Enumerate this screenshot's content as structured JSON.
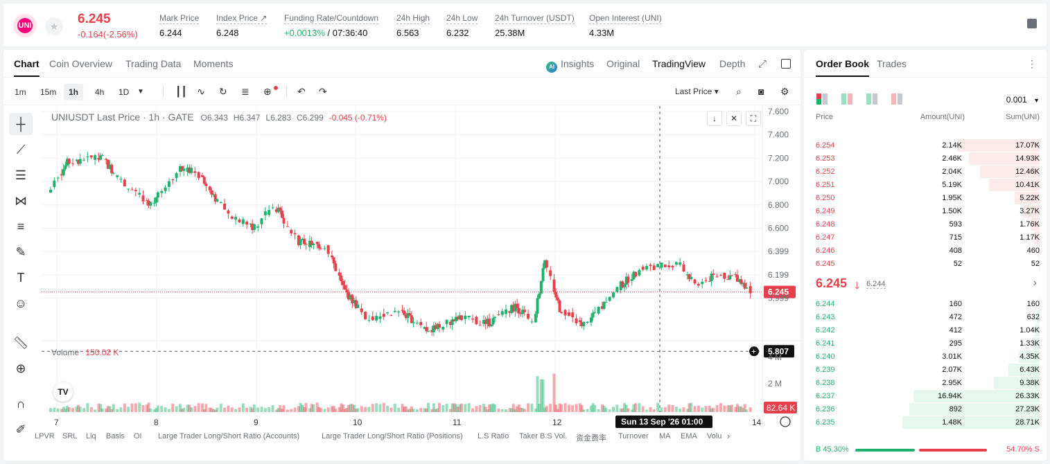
{
  "header": {
    "logo_text": "UNI",
    "price": "6.245",
    "change": "-0.164(-2.56%)",
    "stats": [
      {
        "label": "Mark Price",
        "value": "6.244"
      },
      {
        "label": "Index Price ↗",
        "value": "6.248"
      },
      {
        "label": "Funding Rate/Countdown",
        "value_green": "+0.0013%",
        "value": "/ 07:36:40"
      },
      {
        "label": "24h High",
        "value": "6.563"
      },
      {
        "label": "24h Low",
        "value": "6.232"
      },
      {
        "label": "24h Turnover (USDT)",
        "value": "25.38M"
      },
      {
        "label": "Open Interest (UNI)",
        "value": "4.33M"
      }
    ]
  },
  "chart_tabs": [
    "Chart",
    "Coin Overview",
    "Trading Data",
    "Moments"
  ],
  "view_tabs": {
    "insights": "Insights",
    "insights_badge": "AI",
    "original": "Original",
    "tradingview": "TradingView",
    "depth": "Depth"
  },
  "timeframes": [
    "1m",
    "15m",
    "1h",
    "4h",
    "1D"
  ],
  "price_type": "Last Price ▾",
  "chart_legend": {
    "symbol": "UNIUSDT Last Price · 1h · GATE",
    "o": "O6.343",
    "h": "H6.347",
    "l": "L6.283",
    "c": "C6.299",
    "chg": "-0.045 (-0.71%)"
  },
  "volume_legend": {
    "label": "Volume",
    "value": "150.02 K"
  },
  "chart_overlay": {
    "cursor_time": "Sun 13 Sep '26   01:00"
  },
  "indicators": [
    "LPVR",
    "SRL",
    "Liq",
    "Basis",
    "OI",
    "Large Trader Long/Short Ratio (Accounts)",
    "Large Trader Long/Short Ratio (Positions)",
    "L.S Ratio",
    "Taker B.S Vol.",
    "资金费率",
    "Turnover",
    "MA",
    "EMA",
    "Volu"
  ],
  "icons": {
    "favorite": "star-icon",
    "chevron_right": "chevron-right-icon"
  },
  "chart_data": {
    "type": "candlestick",
    "title": "UNIUSDT Last Price · 1h · GATE",
    "y_ticks": [
      "7.600",
      "7.400",
      "7.200",
      "7.000",
      "6.800",
      "6.600",
      "6.399",
      "6.199",
      "5.999"
    ],
    "ylim": [
      5.88,
      7.62
    ],
    "x_ticks": [
      "7",
      "8",
      "9",
      "10",
      "11",
      "12",
      "13",
      "14"
    ],
    "last_price": 6.245,
    "crosshair_price": 5.807,
    "volume_ticks": [
      "4 M",
      "2 M"
    ],
    "volume_last": "82.64 K",
    "candles": [
      {
        "o": 7.0,
        "c": 6.98,
        "h": 7.01,
        "l": 6.9
      }
    ]
  },
  "order_book": {
    "tabs": [
      "Order Book",
      "Trades"
    ],
    "precision": "0.001",
    "columns": [
      "Price",
      "Amount(UNI)",
      "Sum(UNI)"
    ],
    "asks": [
      {
        "price": "6.254",
        "amount": "2.14K",
        "sum": "17.07K",
        "depth": 0.36
      },
      {
        "price": "6.253",
        "amount": "2.46K",
        "sum": "14.93K",
        "depth": 0.31
      },
      {
        "price": "6.252",
        "amount": "2.04K",
        "sum": "12.46K",
        "depth": 0.26
      },
      {
        "price": "6.251",
        "amount": "5.19K",
        "sum": "10.41K",
        "depth": 0.22
      },
      {
        "price": "6.250",
        "amount": "1.95K",
        "sum": "5.22K",
        "depth": 0.11
      },
      {
        "price": "6.249",
        "amount": "1.50K",
        "sum": "3.27K",
        "depth": 0.07
      },
      {
        "price": "6.248",
        "amount": "593",
        "sum": "1.76K",
        "depth": 0.04
      },
      {
        "price": "6.247",
        "amount": "715",
        "sum": "1.17K",
        "depth": 0.025
      },
      {
        "price": "6.246",
        "amount": "408",
        "sum": "460",
        "depth": 0.01
      },
      {
        "price": "6.245",
        "amount": "52",
        "sum": "52",
        "depth": 0.002
      }
    ],
    "last_price": "6.245",
    "mark_price": "6.244",
    "bids": [
      {
        "price": "6.244",
        "amount": "160",
        "sum": "160",
        "depth": 0.003
      },
      {
        "price": "6.243",
        "amount": "472",
        "sum": "632",
        "depth": 0.013
      },
      {
        "price": "6.242",
        "amount": "412",
        "sum": "1.04K",
        "depth": 0.022
      },
      {
        "price": "6.241",
        "amount": "295",
        "sum": "1.33K",
        "depth": 0.028
      },
      {
        "price": "6.240",
        "amount": "3.01K",
        "sum": "4.35K",
        "depth": 0.09
      },
      {
        "price": "6.239",
        "amount": "2.07K",
        "sum": "6.43K",
        "depth": 0.135
      },
      {
        "price": "6.238",
        "amount": "2.95K",
        "sum": "9.38K",
        "depth": 0.2
      },
      {
        "price": "6.237",
        "amount": "16.94K",
        "sum": "26.33K",
        "depth": 0.55
      },
      {
        "price": "6.236",
        "amount": "892",
        "sum": "27.23K",
        "depth": 0.57
      },
      {
        "price": "6.235",
        "amount": "1.48K",
        "sum": "28.71K",
        "depth": 0.6
      }
    ],
    "buy_ratio": "45.30%",
    "sell_ratio": "54.70%",
    "buy_label": "B",
    "sell_label": "S",
    "buy_fraction": 0.453
  },
  "colors": {
    "up": "#20b26c",
    "down": "#e5414c",
    "accent": "#111111"
  }
}
